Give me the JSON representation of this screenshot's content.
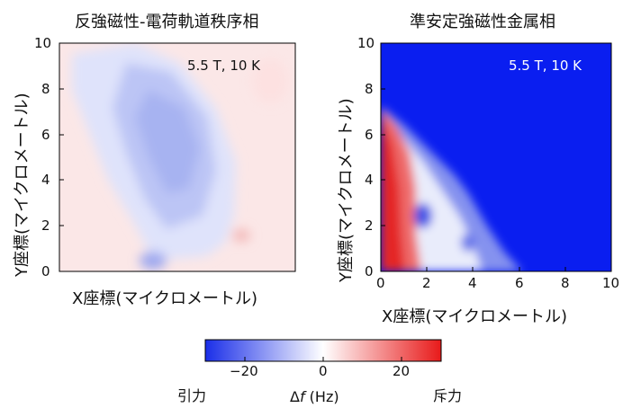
{
  "left_panel": {
    "title": "反強磁性-電荷軌道秩序相",
    "inset": "5.5 T, 10 K",
    "xlabel": "X座標(マイクロメートル)",
    "ylabel": "Y座標(マイクロメートル)",
    "y_ticks": [
      "0",
      "2",
      "4",
      "6",
      "8",
      "10"
    ]
  },
  "right_panel": {
    "title": "準安定強磁性金属相",
    "inset": "5.5 T, 10 K",
    "xlabel": "X座標(マイクロメートル)",
    "ylabel": "Y座標(マイクロメートル)",
    "x_ticks": [
      "0",
      "2",
      "4",
      "6",
      "8",
      "10"
    ],
    "y_ticks": [
      "0",
      "2",
      "4",
      "6",
      "8",
      "10"
    ]
  },
  "colorbar": {
    "ticks": [
      "−20",
      "0",
      "20"
    ],
    "label_prefix": "Δ",
    "label_symbol": "f",
    "label_unit": " (Hz)",
    "left_text": "引力",
    "right_text": "斥力",
    "colors": {
      "negative": "#1a2ee8",
      "zero": "#ffffff",
      "positive": "#e81a1a"
    },
    "range": [
      -30,
      30
    ]
  }
}
